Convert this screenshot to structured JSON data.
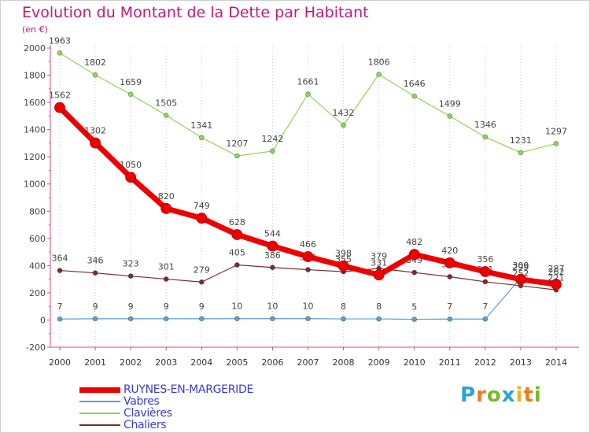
{
  "title": "Evolution du Montant de la Dette par Habitant",
  "unit_label": "(en €)",
  "brand": "Proxiti",
  "chart_data": {
    "type": "line",
    "title": "Evolution du Montant de la Dette par Habitant",
    "ylabel": "(en €)",
    "xlabel": "",
    "x": [
      "2000",
      "2001",
      "2002",
      "2003",
      "2004",
      "2005",
      "2006",
      "2007",
      "2008",
      "2009",
      "2010",
      "2011",
      "2012",
      "2013",
      "2014"
    ],
    "ylim": [
      -200,
      2000
    ],
    "yticks": [
      "-200",
      "0",
      "200",
      "400",
      "600",
      "800",
      "1000",
      "1200",
      "1400",
      "1600",
      "1800",
      "2000"
    ],
    "grid": "vertical dotted",
    "legend_position": "bottom-left",
    "series": [
      {
        "name": "RUYNES-EN-MARGERIDE",
        "color": "#ee0000",
        "values": [
          1562,
          1302,
          1050,
          820,
          749,
          628,
          544,
          466,
          398,
          331,
          482,
          420,
          356,
          299,
          262
        ]
      },
      {
        "name": "Vabres",
        "color": "#5c9fd6",
        "values": [
          7,
          9,
          9,
          9,
          9,
          10,
          10,
          10,
          8,
          8,
          5,
          7,
          7,
          309,
          287
        ]
      },
      {
        "name": "Clavières",
        "color": "#8fd45c",
        "values": [
          1963,
          1802,
          1659,
          1505,
          1341,
          1207,
          1242,
          1661,
          1432,
          1806,
          1646,
          1499,
          1346,
          1231,
          1297
        ]
      },
      {
        "name": "Chaliers",
        "color": "#7a2e2e",
        "values": [
          364,
          346,
          323,
          301,
          279,
          405,
          386,
          370,
          355,
          379,
          349,
          318,
          281,
          252,
          221
        ]
      }
    ]
  }
}
